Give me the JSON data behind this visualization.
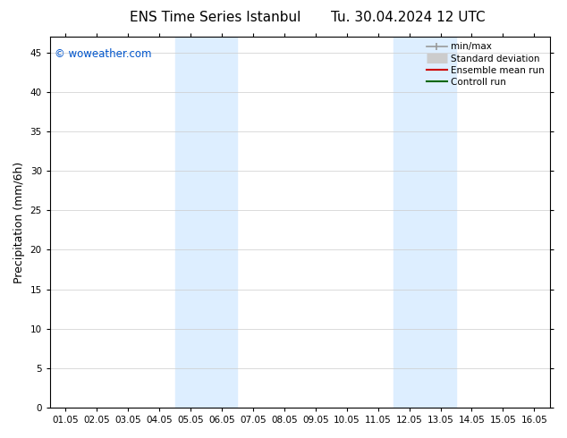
{
  "title": "ENS Time Series Istanbul",
  "subtitle": "Tu. 30.04.2024 12 UTC",
  "ylabel": "Precipitation (mm/6h)",
  "x_tick_labels": [
    "01.05",
    "02.05",
    "03.05",
    "04.05",
    "05.05",
    "06.05",
    "07.05",
    "08.05",
    "09.05",
    "10.05",
    "11.05",
    "12.05",
    "13.05",
    "14.05",
    "15.05",
    "16.05"
  ],
  "x_tick_positions": [
    0,
    1,
    2,
    3,
    4,
    5,
    6,
    7,
    8,
    9,
    10,
    11,
    12,
    13,
    14,
    15
  ],
  "ylim": [
    0,
    47
  ],
  "yticks": [
    0,
    5,
    10,
    15,
    20,
    25,
    30,
    35,
    40,
    45
  ],
  "shaded_bands": [
    {
      "x_start": 3.5,
      "x_end": 5.5
    },
    {
      "x_start": 10.5,
      "x_end": 12.5
    }
  ],
  "band_color": "#ddeeff",
  "background_color": "#ffffff",
  "watermark_text": "© woweather.com",
  "watermark_color": "#0055cc",
  "legend_items": [
    {
      "label": "min/max",
      "color": "#999999",
      "lw": 1.2,
      "style": "solid",
      "type": "errorbar"
    },
    {
      "label": "Standard deviation",
      "color": "#cccccc",
      "lw": 8,
      "style": "solid",
      "type": "thick"
    },
    {
      "label": "Ensemble mean run",
      "color": "#cc0000",
      "lw": 1.5,
      "style": "solid",
      "type": "line"
    },
    {
      "label": "Controll run",
      "color": "#006600",
      "lw": 1.5,
      "style": "solid",
      "type": "line"
    }
  ],
  "grid_color": "#cccccc",
  "spine_color": "#000000",
  "tick_fontsize": 7.5,
  "ylabel_fontsize": 9,
  "title_fontsize": 11,
  "watermark_fontsize": 8.5
}
